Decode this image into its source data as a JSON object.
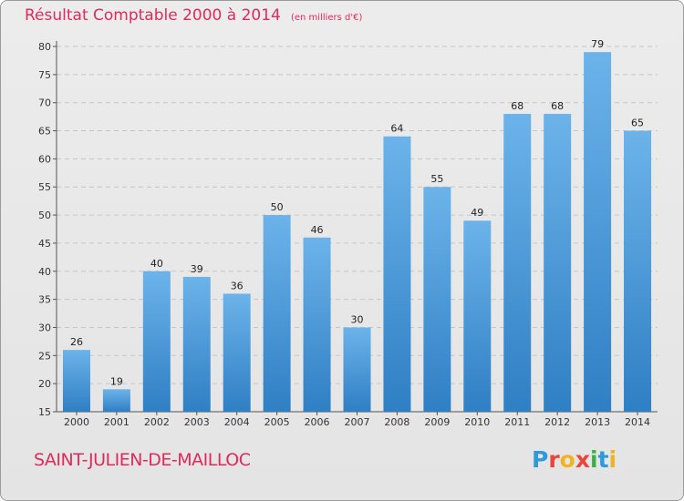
{
  "chart_data": {
    "type": "bar",
    "title": "Résultat Comptable 2000 à 2014",
    "subtitle": "(en milliers d'€)",
    "categories": [
      "2000",
      "2001",
      "2002",
      "2003",
      "2004",
      "2005",
      "2006",
      "2007",
      "2008",
      "2009",
      "2010",
      "2011",
      "2012",
      "2013",
      "2014"
    ],
    "values": [
      26,
      19,
      40,
      39,
      36,
      50,
      46,
      30,
      64,
      55,
      49,
      68,
      68,
      79,
      65
    ],
    "ylim": [
      15,
      80
    ],
    "yticks": [
      15,
      20,
      25,
      30,
      35,
      40,
      45,
      50,
      55,
      60,
      65,
      70,
      75,
      80
    ],
    "grid": true,
    "bar_color": "#3f8fd2",
    "xlabel": "",
    "ylabel": ""
  },
  "footer": {
    "commune": "SAINT-JULIEN-DE-MAILLOC",
    "logo_letters": [
      "P",
      "r",
      "o",
      "x",
      "i",
      "t",
      "i"
    ],
    "logo_colors": [
      "#2f9ad8",
      "#e8463d",
      "#f0b323",
      "#e8463d",
      "#3fae49",
      "#2f9ad8",
      "#f0b323"
    ]
  }
}
